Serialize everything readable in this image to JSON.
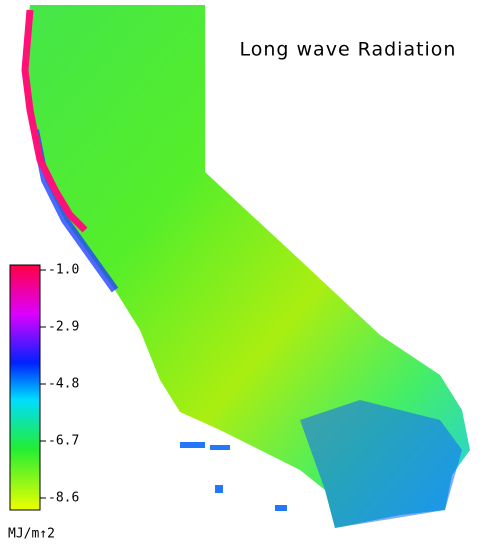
{
  "title": "Long wave Radiation",
  "colorbar": {
    "lim": [
      -1,
      -8.6
    ],
    "ticks": [
      {
        "value": -1,
        "label": "-1.0"
      },
      -2.9,
      -4.8,
      -6.7,
      -8.6
    ],
    "unit": "MJ/m↑2"
  }
}
